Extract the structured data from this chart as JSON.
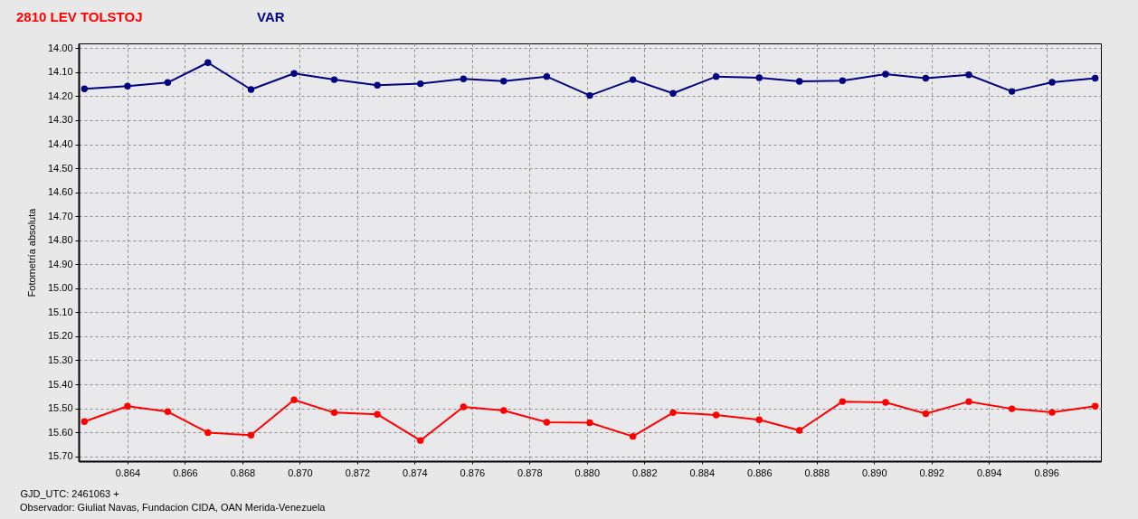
{
  "chart_data": {
    "type": "line",
    "legend": "top left",
    "xlabel": "GJD_UTC: 2461063 +",
    "ylabel": "Fotometría absoluta",
    "annotations": [
      "Observador: Giuliat Navas, Fundacion CIDA, OAN Merida-Venezuela"
    ],
    "x": [
      0.8625,
      0.864,
      0.8654,
      0.8668,
      0.8683,
      0.8698,
      0.8712,
      0.8727,
      0.8742,
      0.8757,
      0.8771,
      0.8786,
      0.8801,
      0.8816,
      0.883,
      0.8845,
      0.886,
      0.8874,
      0.8889,
      0.8904,
      0.8918,
      0.8933,
      0.8948,
      0.8962,
      0.8977
    ],
    "series": [
      {
        "name": "2810 LEV TOLSTOJ",
        "color": "#ff0000",
        "values": [
          15.555,
          15.491,
          15.514,
          15.601,
          15.612,
          15.465,
          15.518,
          15.525,
          15.634,
          15.494,
          15.509,
          15.558,
          15.56,
          15.617,
          15.518,
          15.528,
          15.548,
          15.592,
          15.472,
          15.475,
          15.522,
          15.472,
          15.502,
          15.517,
          15.491
        ]
      },
      {
        "name": "VAR",
        "color": "#000080",
        "values": [
          14.169,
          14.158,
          14.143,
          14.06,
          14.172,
          14.105,
          14.131,
          14.154,
          14.148,
          14.128,
          14.137,
          14.118,
          14.197,
          14.131,
          14.188,
          14.118,
          14.123,
          14.138,
          14.135,
          14.108,
          14.125,
          14.111,
          14.18,
          14.142,
          14.125
        ]
      }
    ],
    "xlim": [
      0.8623,
      0.8979
    ],
    "ylim": [
      15.72,
      13.98
    ],
    "xticks": [
      0.864,
      0.866,
      0.868,
      {
        "value": 0.87,
        "label": "0.870"
      },
      0.872,
      0.874,
      0.876,
      0.878,
      {
        "value": 0.88,
        "label": "0.880"
      },
      0.882,
      0.884,
      0.886,
      0.888,
      {
        "value": 0.89,
        "label": "0.890"
      },
      0.892,
      0.894,
      0.896
    ],
    "yticks": [
      {
        "value": 14.0,
        "label": "14.00"
      },
      {
        "value": 14.1,
        "label": "14.10"
      },
      {
        "value": 14.2,
        "label": "14.20"
      },
      {
        "value": 14.3,
        "label": "14.30"
      },
      {
        "value": 14.4,
        "label": "14.40"
      },
      {
        "value": 14.5,
        "label": "14.50"
      },
      {
        "value": 14.6,
        "label": "14.60"
      },
      {
        "value": 14.7,
        "label": "14.70"
      },
      {
        "value": 14.8,
        "label": "14.80"
      },
      {
        "value": 14.9,
        "label": "14.90"
      },
      {
        "value": 15.0,
        "label": "15.00"
      },
      {
        "value": 15.1,
        "label": "15.10"
      },
      {
        "value": 15.2,
        "label": "15.20"
      },
      {
        "value": 15.3,
        "label": "15.30"
      },
      {
        "value": 15.4,
        "label": "15.40"
      },
      {
        "value": 15.5,
        "label": "15.50"
      },
      {
        "value": 15.6,
        "label": "15.60"
      },
      {
        "value": 15.7,
        "label": "15.70"
      }
    ],
    "grid": true,
    "marker": "circle",
    "line_style": "solid"
  }
}
